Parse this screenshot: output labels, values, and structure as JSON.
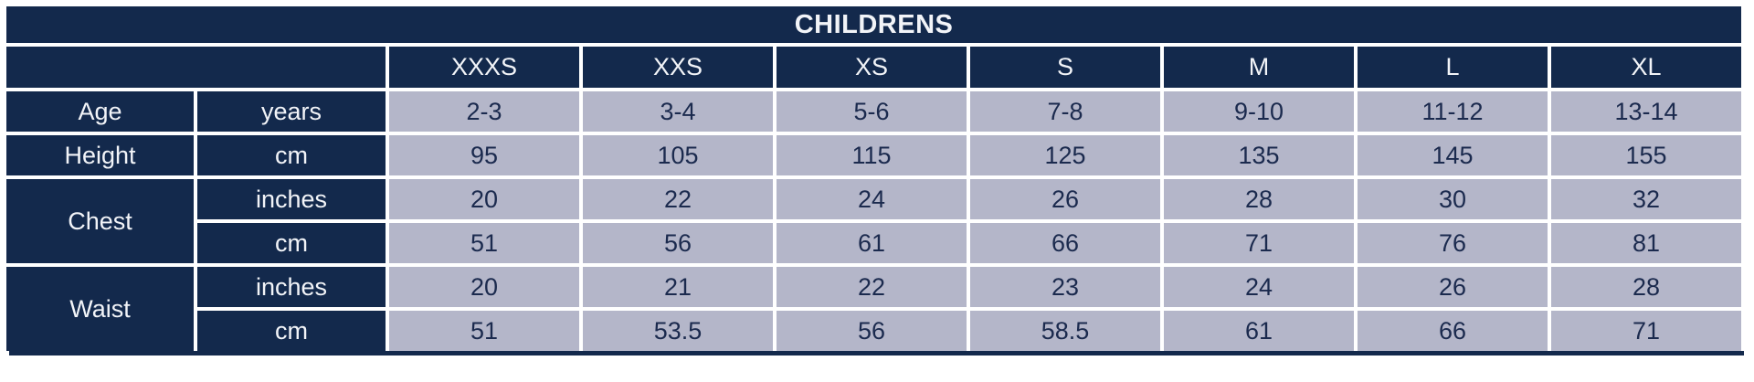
{
  "title": "CHILDRENS",
  "size_headers": [
    "XXXS",
    "XXS",
    "XS",
    "S",
    "M",
    "L",
    "XL"
  ],
  "measurements": [
    {
      "label": "Age",
      "rows": [
        {
          "unit": "years",
          "values": [
            "2-3",
            "3-4",
            "5-6",
            "7-8",
            "9-10",
            "11-12",
            "13-14"
          ]
        }
      ]
    },
    {
      "label": "Height",
      "rows": [
        {
          "unit": "cm",
          "values": [
            "95",
            "105",
            "115",
            "125",
            "135",
            "145",
            "155"
          ]
        }
      ]
    },
    {
      "label": "Chest",
      "rows": [
        {
          "unit": "inches",
          "values": [
            "20",
            "22",
            "24",
            "26",
            "28",
            "30",
            "32"
          ]
        },
        {
          "unit": "cm",
          "values": [
            "51",
            "56",
            "61",
            "66",
            "71",
            "76",
            "81"
          ]
        }
      ]
    },
    {
      "label": "Waist",
      "rows": [
        {
          "unit": "inches",
          "values": [
            "20",
            "21",
            "22",
            "23",
            "24",
            "26",
            "28"
          ]
        },
        {
          "unit": "cm",
          "values": [
            "51",
            "53.5",
            "56",
            "58.5",
            "61",
            "66",
            "71"
          ]
        }
      ]
    }
  ],
  "colors": {
    "navy": "#13294C",
    "cell_background": "#B4B6C9",
    "gridline": "#FFFFFF",
    "light_text": "#F2F4F8",
    "dark_text": "#1B2A4E"
  },
  "chart_data": {
    "type": "table",
    "title": "CHILDRENS",
    "columns": [
      "",
      "",
      "XXXS",
      "XXS",
      "XS",
      "S",
      "M",
      "L",
      "XL"
    ],
    "rows": [
      [
        "Age",
        "years",
        "2-3",
        "3-4",
        "5-6",
        "7-8",
        "9-10",
        "11-12",
        "13-14"
      ],
      [
        "Height",
        "cm",
        "95",
        "105",
        "115",
        "125",
        "135",
        "145",
        "155"
      ],
      [
        "Chest",
        "inches",
        "20",
        "22",
        "24",
        "26",
        "28",
        "30",
        "32"
      ],
      [
        "Chest",
        "cm",
        "51",
        "56",
        "61",
        "66",
        "71",
        "76",
        "81"
      ],
      [
        "Waist",
        "inches",
        "20",
        "21",
        "22",
        "23",
        "24",
        "26",
        "28"
      ],
      [
        "Waist",
        "cm",
        "51",
        "53.5",
        "56",
        "58.5",
        "61",
        "66",
        "71"
      ]
    ]
  }
}
